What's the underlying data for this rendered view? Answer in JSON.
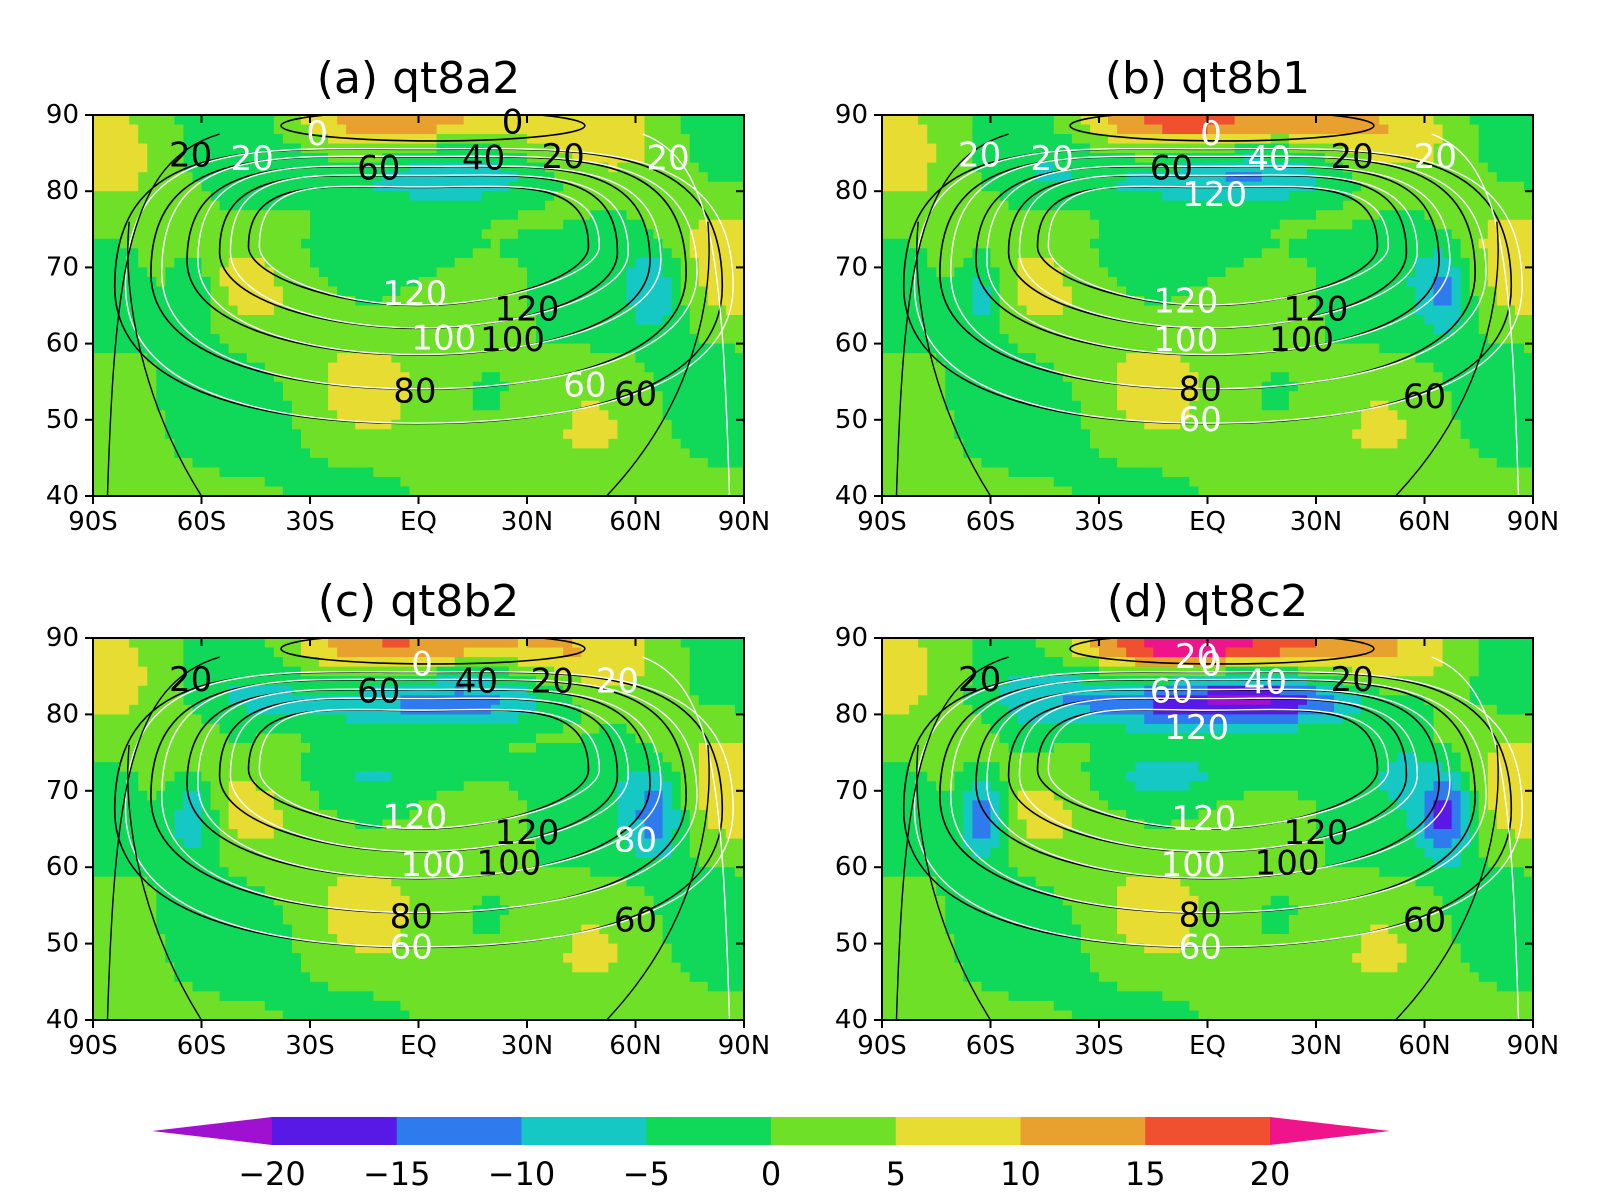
{
  "chart_data": [
    {
      "type": "heatmap",
      "title": "(a) qt8a2",
      "xticks": [
        "90S",
        "60S",
        "30S",
        "EQ",
        "30N",
        "60N",
        "90N"
      ],
      "yticks": [
        "40",
        "50",
        "60",
        "70",
        "80",
        "90"
      ],
      "xlim": [
        -90,
        90
      ],
      "ylim": [
        40,
        90
      ],
      "contour_labels": [
        {
          "text": "0",
          "x": 26,
          "y": 89,
          "color": "black"
        },
        {
          "text": "0",
          "x": -28,
          "y": 87.5,
          "color": "white"
        },
        {
          "text": "20",
          "x": -63,
          "y": 84.7,
          "color": "black"
        },
        {
          "text": "20",
          "x": -46,
          "y": 84.2,
          "color": "white"
        },
        {
          "text": "60",
          "x": -11,
          "y": 83,
          "color": "black"
        },
        {
          "text": "40",
          "x": 18,
          "y": 84.3,
          "color": "black"
        },
        {
          "text": "20",
          "x": 40,
          "y": 84.5,
          "color": "black"
        },
        {
          "text": "20",
          "x": 69,
          "y": 84.3,
          "color": "white"
        },
        {
          "text": "120",
          "x": -1,
          "y": 66.5,
          "color": "white"
        },
        {
          "text": "120",
          "x": 30,
          "y": 64.5,
          "color": "black"
        },
        {
          "text": "100",
          "x": 7,
          "y": 60.7,
          "color": "white"
        },
        {
          "text": "100",
          "x": 26,
          "y": 60.5,
          "color": "black"
        },
        {
          "text": "80",
          "x": -1,
          "y": 53.7,
          "color": "black"
        },
        {
          "text": "60",
          "x": 46,
          "y": 54.5,
          "color": "white"
        },
        {
          "text": "60",
          "x": 60,
          "y": 53.3,
          "color": "black"
        }
      ],
      "anomaly": {
        "cap": 11,
        "jet": -7,
        "high": -9,
        "dip": -6
      }
    },
    {
      "type": "heatmap",
      "title": "(b) qt8b1",
      "xticks": [
        "90S",
        "60S",
        "30S",
        "EQ",
        "30N",
        "60N",
        "90N"
      ],
      "yticks": [
        "40",
        "50",
        "60",
        "70",
        "80",
        "90"
      ],
      "xlim": [
        -90,
        90
      ],
      "ylim": [
        40,
        90
      ],
      "contour_labels": [
        {
          "text": "0",
          "x": 1,
          "y": 87.5,
          "color": "white"
        },
        {
          "text": "20",
          "x": -63,
          "y": 84.7,
          "color": "white"
        },
        {
          "text": "20",
          "x": -43,
          "y": 84.2,
          "color": "white"
        },
        {
          "text": "60",
          "x": -10,
          "y": 83,
          "color": "black"
        },
        {
          "text": "40",
          "x": 17,
          "y": 84.2,
          "color": "white"
        },
        {
          "text": "20",
          "x": 40,
          "y": 84.5,
          "color": "black"
        },
        {
          "text": "20",
          "x": 63,
          "y": 84.5,
          "color": "white"
        },
        {
          "text": "120",
          "x": 2,
          "y": 79.5,
          "color": "white"
        },
        {
          "text": "120",
          "x": -6,
          "y": 65.5,
          "color": "white"
        },
        {
          "text": "120",
          "x": 30,
          "y": 64.5,
          "color": "black"
        },
        {
          "text": "100",
          "x": -6,
          "y": 60.5,
          "color": "white"
        },
        {
          "text": "100",
          "x": 26,
          "y": 60.5,
          "color": "black"
        },
        {
          "text": "80",
          "x": -2,
          "y": 54,
          "color": "black"
        },
        {
          "text": "60",
          "x": -2,
          "y": 50,
          "color": "white"
        },
        {
          "text": "60",
          "x": 60,
          "y": 53,
          "color": "black"
        }
      ],
      "anomaly": {
        "cap": 15,
        "jet": -9,
        "high": -11,
        "dip": -6
      }
    },
    {
      "type": "heatmap",
      "title": "(c) qt8b2",
      "xticks": [
        "90S",
        "60S",
        "30S",
        "EQ",
        "30N",
        "60N",
        "90N"
      ],
      "yticks": [
        "40",
        "50",
        "60",
        "70",
        "80",
        "90"
      ],
      "xlim": [
        -90,
        90
      ],
      "ylim": [
        40,
        90
      ],
      "contour_labels": [
        {
          "text": "0",
          "x": 1,
          "y": 86.5,
          "color": "white"
        },
        {
          "text": "20",
          "x": -63,
          "y": 84.5,
          "color": "black"
        },
        {
          "text": "60",
          "x": -11,
          "y": 83,
          "color": "black"
        },
        {
          "text": "40",
          "x": 16,
          "y": 84.3,
          "color": "black"
        },
        {
          "text": "20",
          "x": 37,
          "y": 84.3,
          "color": "black"
        },
        {
          "text": "20",
          "x": 55,
          "y": 84.3,
          "color": "white"
        },
        {
          "text": "120",
          "x": -1,
          "y": 66.5,
          "color": "white"
        },
        {
          "text": "120",
          "x": 30,
          "y": 64.5,
          "color": "black"
        },
        {
          "text": "80",
          "x": 60,
          "y": 63.5,
          "color": "white"
        },
        {
          "text": "100",
          "x": 4,
          "y": 60.3,
          "color": "white"
        },
        {
          "text": "100",
          "x": 25,
          "y": 60.5,
          "color": "black"
        },
        {
          "text": "80",
          "x": -2,
          "y": 53.5,
          "color": "black"
        },
        {
          "text": "60",
          "x": -2,
          "y": 49.5,
          "color": "white"
        },
        {
          "text": "60",
          "x": 60,
          "y": 53,
          "color": "black"
        }
      ],
      "anomaly": {
        "cap": 13,
        "jet": -11,
        "high": -13,
        "dip": -7
      }
    },
    {
      "type": "heatmap",
      "title": "(d) qt8c2",
      "xticks": [
        "90S",
        "60S",
        "30S",
        "EQ",
        "30N",
        "60N",
        "90N"
      ],
      "yticks": [
        "40",
        "50",
        "60",
        "70",
        "80",
        "90"
      ],
      "xlim": [
        -90,
        90
      ],
      "ylim": [
        40,
        90
      ],
      "contour_labels": [
        {
          "text": "20",
          "x": -3,
          "y": 87.5,
          "color": "white"
        },
        {
          "text": "0",
          "x": 1,
          "y": 86.5,
          "color": "white"
        },
        {
          "text": "20",
          "x": -63,
          "y": 84.5,
          "color": "black"
        },
        {
          "text": "60",
          "x": -10,
          "y": 83,
          "color": "white"
        },
        {
          "text": "40",
          "x": 16,
          "y": 84.2,
          "color": "white"
        },
        {
          "text": "20",
          "x": 40,
          "y": 84.5,
          "color": "black"
        },
        {
          "text": "120",
          "x": -3,
          "y": 78.2,
          "color": "white"
        },
        {
          "text": "120",
          "x": -1,
          "y": 66.3,
          "color": "white"
        },
        {
          "text": "120",
          "x": 30,
          "y": 64.5,
          "color": "black"
        },
        {
          "text": "100",
          "x": -4,
          "y": 60.3,
          "color": "white"
        },
        {
          "text": "100",
          "x": 22,
          "y": 60.5,
          "color": "black"
        },
        {
          "text": "80",
          "x": -2,
          "y": 53.7,
          "color": "black"
        },
        {
          "text": "60",
          "x": -2,
          "y": 49.5,
          "color": "white"
        },
        {
          "text": "60",
          "x": 60,
          "y": 53,
          "color": "black"
        }
      ],
      "anomaly": {
        "cap": 22,
        "jet": -20,
        "high": -17,
        "dip": -10
      }
    }
  ],
  "colorbar": {
    "levels": [
      -20,
      -15,
      -10,
      -5,
      0,
      5,
      10,
      15,
      20
    ],
    "labels": [
      "−20",
      "−15",
      "−10",
      "−5",
      "0",
      "5",
      "10",
      "15",
      "20"
    ],
    "colors": [
      "#a010d0",
      "#5818e6",
      "#2e7bee",
      "#16c8c4",
      "#10d858",
      "#6ee028",
      "#e6dc32",
      "#e8a02e",
      "#f05030",
      "#f0148c"
    ]
  }
}
